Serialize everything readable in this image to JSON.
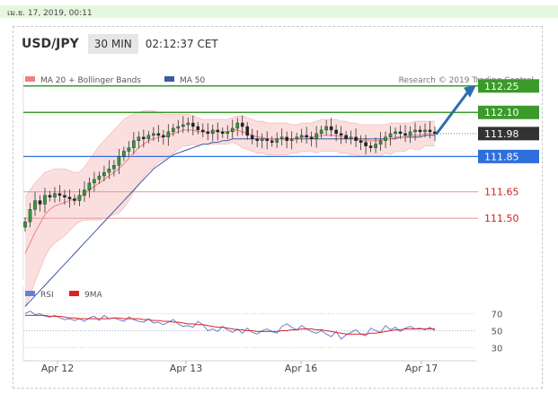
{
  "topbar": {
    "date_text": "เม.ย. 17, 2019, 00:11"
  },
  "header": {
    "symbol": "USD/JPY",
    "timeframe": "30 MIN",
    "time": "02:12:37 CET"
  },
  "colors": {
    "resistance": "#3a9a2a",
    "support": "#e8a0a0",
    "support_text": "#cc2222",
    "pivot": "#2f6fdc",
    "current": "#333333",
    "ma20": "#f08080",
    "ma50": "#3b5aa0",
    "bollinger": "#fbdcdc",
    "rsi": "#6a7fd0",
    "rsi_ma": "#dd2222",
    "arrow": "#2a6fb0"
  },
  "chart_data": [
    {
      "type": "line",
      "title": "",
      "legend": [
        {
          "name": "MA 20 + Bollinger Bands",
          "color": "#f08080"
        },
        {
          "name": "MA 50",
          "color": "#3b5aa0"
        }
      ],
      "credit": "Research © 2019 Trading Central",
      "x_labels": [
        "Apr 12",
        "Apr 13",
        "Apr 16",
        "Apr 17"
      ],
      "ylim": [
        111.15,
        112.32
      ],
      "levels": [
        {
          "value": 112.25,
          "label": "112.25",
          "kind": "resistance"
        },
        {
          "value": 112.1,
          "label": "112.10",
          "kind": "resistance"
        },
        {
          "value": 111.98,
          "label": "111.98",
          "kind": "current"
        },
        {
          "value": 111.85,
          "label": "111.85",
          "kind": "pivot"
        },
        {
          "value": 111.65,
          "label": "111.65",
          "kind": "support"
        },
        {
          "value": 111.5,
          "label": "111.50",
          "kind": "support"
        }
      ],
      "price_close": [
        111.48,
        111.55,
        111.6,
        111.58,
        111.63,
        111.62,
        111.64,
        111.63,
        111.62,
        111.61,
        111.6,
        111.63,
        111.66,
        111.7,
        111.72,
        111.74,
        111.76,
        111.78,
        111.8,
        111.85,
        111.88,
        111.9,
        111.94,
        111.96,
        111.95,
        111.97,
        111.98,
        111.97,
        111.96,
        111.99,
        112.01,
        112.02,
        112.03,
        112.04,
        112.02,
        112.0,
        111.99,
        111.98,
        112.0,
        111.99,
        111.98,
        111.99,
        112.01,
        112.04,
        112.02,
        111.97,
        111.95,
        111.94,
        111.95,
        111.94,
        111.93,
        111.95,
        111.96,
        111.94,
        111.95,
        111.96,
        111.97,
        111.96,
        111.95,
        111.98,
        112.0,
        112.02,
        112.0,
        111.98,
        111.97,
        111.95,
        111.96,
        111.94,
        111.93,
        111.91,
        111.9,
        111.92,
        111.94,
        111.96,
        111.98,
        111.99,
        111.98,
        111.97,
        111.99,
        112.0,
        111.99,
        112.0,
        111.99,
        111.98
      ],
      "ma20": [
        111.3,
        111.36,
        111.42,
        111.47,
        111.52,
        111.55,
        111.57,
        111.58,
        111.59,
        111.6,
        111.61,
        111.62,
        111.64,
        111.66,
        111.68,
        111.7,
        111.72,
        111.74,
        111.76,
        111.78,
        111.81,
        111.84,
        111.87,
        111.9,
        111.92,
        111.94,
        111.95,
        111.96,
        111.96,
        111.97,
        111.98,
        111.99,
        112.0,
        112.0,
        112.0,
        111.99,
        111.99,
        111.99,
        111.99,
        111.99,
        111.99,
        111.99,
        112.0,
        112.0,
        111.99,
        111.98,
        111.97,
        111.96,
        111.96,
        111.95,
        111.95,
        111.95,
        111.95,
        111.95,
        111.95,
        111.95,
        111.96,
        111.96,
        111.96,
        111.96,
        111.97,
        111.97,
        111.97,
        111.97,
        111.96,
        111.96,
        111.95,
        111.95,
        111.94,
        111.94,
        111.94,
        111.94,
        111.94,
        111.95,
        111.95,
        111.96,
        111.96,
        111.96,
        111.97,
        111.97,
        111.97,
        111.98,
        111.98,
        111.98
      ],
      "bb_upper": [
        111.62,
        111.66,
        111.7,
        111.73,
        111.76,
        111.77,
        111.78,
        111.78,
        111.78,
        111.77,
        111.76,
        111.76,
        111.79,
        111.83,
        111.87,
        111.91,
        111.94,
        111.97,
        112.0,
        112.03,
        112.06,
        112.08,
        112.09,
        112.1,
        112.11,
        112.11,
        112.11,
        112.1,
        112.09,
        112.09,
        112.09,
        112.09,
        112.09,
        112.09,
        112.08,
        112.07,
        112.06,
        112.06,
        112.06,
        112.06,
        112.06,
        112.06,
        112.07,
        112.08,
        112.08,
        112.07,
        112.06,
        112.05,
        112.05,
        112.04,
        112.04,
        112.04,
        112.04,
        112.04,
        112.03,
        112.03,
        112.04,
        112.04,
        112.04,
        112.05,
        112.06,
        112.06,
        112.06,
        112.06,
        112.05,
        112.05,
        112.04,
        112.04,
        112.03,
        112.03,
        112.03,
        112.03,
        112.03,
        112.03,
        112.04,
        112.04,
        112.04,
        112.04,
        112.04,
        112.05,
        112.05,
        112.05,
        112.05,
        112.05
      ],
      "bb_lower": [
        111.0,
        111.06,
        111.14,
        111.21,
        111.28,
        111.33,
        111.36,
        111.38,
        111.4,
        111.43,
        111.46,
        111.48,
        111.49,
        111.49,
        111.49,
        111.49,
        111.5,
        111.51,
        111.52,
        111.53,
        111.56,
        111.6,
        111.65,
        111.7,
        111.73,
        111.77,
        111.79,
        111.82,
        111.83,
        111.85,
        111.87,
        111.89,
        111.91,
        111.91,
        111.92,
        111.91,
        111.92,
        111.92,
        111.92,
        111.92,
        111.92,
        111.92,
        111.93,
        111.92,
        111.9,
        111.89,
        111.88,
        111.87,
        111.87,
        111.86,
        111.86,
        111.86,
        111.86,
        111.86,
        111.87,
        111.87,
        111.88,
        111.88,
        111.88,
        111.87,
        111.88,
        111.88,
        111.88,
        111.88,
        111.87,
        111.87,
        111.86,
        111.86,
        111.85,
        111.85,
        111.85,
        111.85,
        111.85,
        111.87,
        111.86,
        111.88,
        111.88,
        111.88,
        111.9,
        111.89,
        111.89,
        111.91,
        111.91,
        111.91
      ],
      "ma50": [
        111.0,
        111.03,
        111.06,
        111.09,
        111.12,
        111.15,
        111.18,
        111.21,
        111.24,
        111.27,
        111.3,
        111.33,
        111.36,
        111.39,
        111.42,
        111.45,
        111.48,
        111.51,
        111.54,
        111.57,
        111.6,
        111.63,
        111.66,
        111.69,
        111.72,
        111.75,
        111.78,
        111.8,
        111.82,
        111.84,
        111.86,
        111.87,
        111.88,
        111.89,
        111.9,
        111.91,
        111.92,
        111.92,
        111.93,
        111.93,
        111.94,
        111.94,
        111.95,
        111.95,
        111.95,
        111.95,
        111.95,
        111.95,
        111.95,
        111.95,
        111.95,
        111.95,
        111.95,
        111.95,
        111.95,
        111.95,
        111.95,
        111.95,
        111.95,
        111.95,
        111.95,
        111.95,
        111.95,
        111.95,
        111.95,
        111.95,
        111.95,
        111.95,
        111.95,
        111.95,
        111.95,
        111.95,
        111.95,
        111.95,
        111.95,
        111.95,
        111.96,
        111.96,
        111.96,
        111.96,
        111.96,
        111.97,
        111.97,
        111.97
      ]
    },
    {
      "type": "line",
      "title": "",
      "legend": [
        {
          "name": "RSI",
          "color": "#6a7fd0"
        },
        {
          "name": "9MA",
          "color": "#dd2222"
        }
      ],
      "ylim": [
        22,
        80
      ],
      "y_ticks": [
        70,
        50,
        30
      ],
      "rsi": [
        70,
        73,
        69,
        70,
        67,
        66,
        68,
        65,
        63,
        64,
        62,
        64,
        61,
        65,
        67,
        62,
        68,
        64,
        65,
        63,
        61,
        66,
        63,
        61,
        60,
        64,
        59,
        60,
        57,
        60,
        63,
        58,
        55,
        56,
        54,
        61,
        57,
        50,
        52,
        49,
        55,
        51,
        48,
        52,
        47,
        53,
        48,
        46,
        50,
        52,
        49,
        47,
        55,
        58,
        54,
        51,
        56,
        52,
        49,
        47,
        50,
        46,
        43,
        49,
        40,
        45,
        48,
        51,
        46,
        44,
        53,
        50,
        48,
        56,
        51,
        54,
        49,
        53,
        55,
        52,
        53,
        51,
        54,
        50
      ],
      "rsi_ma": [
        68,
        68,
        68,
        68,
        68,
        67,
        67,
        67,
        66,
        65,
        65,
        64,
        64,
        64,
        64,
        64,
        64,
        64,
        65,
        65,
        64,
        64,
        64,
        64,
        63,
        63,
        62,
        62,
        61,
        61,
        60,
        60,
        59,
        58,
        58,
        57,
        57,
        56,
        55,
        54,
        54,
        53,
        52,
        51,
        51,
        50,
        50,
        49,
        49,
        49,
        49,
        49,
        50,
        50,
        51,
        51,
        52,
        52,
        52,
        51,
        51,
        50,
        49,
        48,
        47,
        46,
        46,
        46,
        46,
        46,
        47,
        47,
        48,
        49,
        50,
        51,
        51,
        52,
        52,
        52,
        52,
        52,
        52,
        52
      ]
    }
  ]
}
